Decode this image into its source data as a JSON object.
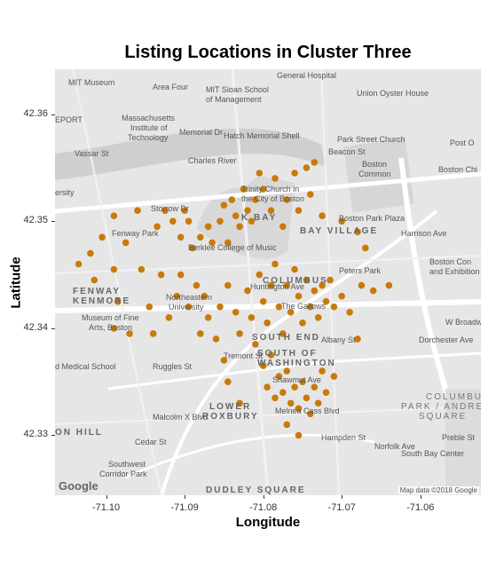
{
  "chart_data": {
    "type": "scatter",
    "title": "Listing Locations in Cluster Three",
    "xlabel": "Longitude",
    "ylabel": "Latitude",
    "xlim": [
      -71.1065,
      -71.0523
    ],
    "ylim": [
      42.3244,
      42.3642
    ],
    "x_ticks": [
      -71.1,
      -71.09,
      -71.08,
      -71.07,
      -71.06
    ],
    "x_tick_labels": [
      "-71.10",
      "-71.09",
      "-71.08",
      "-71.07",
      "-71.06"
    ],
    "y_ticks": [
      42.33,
      42.34,
      42.35,
      42.36
    ],
    "y_tick_labels": [
      "42.33",
      "42.34",
      "42.35",
      "42.36"
    ],
    "point_color": "#c87a0a",
    "basemap": "grayscale street map",
    "points": [
      [
        -71.1035,
        42.346
      ],
      [
        -71.102,
        42.347
      ],
      [
        -71.1005,
        42.3485
      ],
      [
        -71.099,
        42.3505
      ],
      [
        -71.1015,
        42.3445
      ],
      [
        -71.099,
        42.3455
      ],
      [
        -71.0975,
        42.348
      ],
      [
        -71.096,
        42.351
      ],
      [
        -71.0955,
        42.3455
      ],
      [
        -71.0945,
        42.342
      ],
      [
        -71.0985,
        42.3425
      ],
      [
        -71.099,
        42.34
      ],
      [
        -71.097,
        42.3395
      ],
      [
        -71.0935,
        42.3495
      ],
      [
        -71.093,
        42.345
      ],
      [
        -71.0925,
        42.351
      ],
      [
        -71.0915,
        42.35
      ],
      [
        -71.0905,
        42.3485
      ],
      [
        -71.09,
        42.351
      ],
      [
        -71.0895,
        42.35
      ],
      [
        -71.089,
        42.3475
      ],
      [
        -71.088,
        42.3485
      ],
      [
        -71.087,
        42.3495
      ],
      [
        -71.0865,
        42.348
      ],
      [
        -71.0855,
        42.35
      ],
      [
        -71.085,
        42.3515
      ],
      [
        -71.0845,
        42.348
      ],
      [
        -71.084,
        42.352
      ],
      [
        -71.0835,
        42.3505
      ],
      [
        -71.083,
        42.3495
      ],
      [
        -71.0825,
        42.353
      ],
      [
        -71.082,
        42.351
      ],
      [
        -71.0815,
        42.35
      ],
      [
        -71.081,
        42.352
      ],
      [
        -71.0805,
        42.3545
      ],
      [
        -71.08,
        42.353
      ],
      [
        -71.079,
        42.351
      ],
      [
        -71.0785,
        42.354
      ],
      [
        -71.0775,
        42.3495
      ],
      [
        -71.077,
        42.352
      ],
      [
        -71.076,
        42.3545
      ],
      [
        -71.0755,
        42.351
      ],
      [
        -71.0745,
        42.355
      ],
      [
        -71.074,
        42.3525
      ],
      [
        -71.0735,
        42.3555
      ],
      [
        -71.0725,
        42.3505
      ],
      [
        -71.07,
        42.35
      ],
      [
        -71.068,
        42.349
      ],
      [
        -71.067,
        42.3475
      ],
      [
        -71.0905,
        42.345
      ],
      [
        -71.091,
        42.343
      ],
      [
        -71.0895,
        42.342
      ],
      [
        -71.0885,
        42.344
      ],
      [
        -71.0875,
        42.343
      ],
      [
        -71.087,
        42.341
      ],
      [
        -71.088,
        42.3395
      ],
      [
        -71.086,
        42.339
      ],
      [
        -71.0855,
        42.342
      ],
      [
        -71.0845,
        42.344
      ],
      [
        -71.0835,
        42.3415
      ],
      [
        -71.083,
        42.3395
      ],
      [
        -71.082,
        42.3435
      ],
      [
        -71.0815,
        42.341
      ],
      [
        -71.081,
        42.3385
      ],
      [
        -71.0805,
        42.345
      ],
      [
        -71.08,
        42.3425
      ],
      [
        -71.0795,
        42.3405
      ],
      [
        -71.079,
        42.344
      ],
      [
        -71.0785,
        42.346
      ],
      [
        -71.078,
        42.342
      ],
      [
        -71.0775,
        42.3395
      ],
      [
        -71.077,
        42.344
      ],
      [
        -71.0765,
        42.3415
      ],
      [
        -71.076,
        42.3455
      ],
      [
        -71.0755,
        42.343
      ],
      [
        -71.075,
        42.3405
      ],
      [
        -71.0745,
        42.3445
      ],
      [
        -71.074,
        42.342
      ],
      [
        -71.0735,
        42.3435
      ],
      [
        -71.073,
        42.341
      ],
      [
        -71.0725,
        42.344
      ],
      [
        -71.072,
        42.3425
      ],
      [
        -71.0715,
        42.3445
      ],
      [
        -71.071,
        42.342
      ],
      [
        -71.07,
        42.343
      ],
      [
        -71.069,
        42.3415
      ],
      [
        -71.0675,
        42.344
      ],
      [
        -71.066,
        42.3435
      ],
      [
        -71.064,
        42.344
      ],
      [
        -71.08,
        42.3365
      ],
      [
        -71.0795,
        42.3345
      ],
      [
        -71.079,
        42.3375
      ],
      [
        -71.0785,
        42.3335
      ],
      [
        -71.078,
        42.3355
      ],
      [
        -71.0775,
        42.334
      ],
      [
        -71.077,
        42.336
      ],
      [
        -71.0765,
        42.333
      ],
      [
        -71.076,
        42.3345
      ],
      [
        -71.0755,
        42.3325
      ],
      [
        -71.075,
        42.335
      ],
      [
        -71.0745,
        42.3335
      ],
      [
        -71.074,
        42.332
      ],
      [
        -71.0735,
        42.3345
      ],
      [
        -71.073,
        42.333
      ],
      [
        -71.0725,
        42.336
      ],
      [
        -71.072,
        42.334
      ],
      [
        -71.071,
        42.3355
      ],
      [
        -71.077,
        42.331
      ],
      [
        -71.0755,
        42.33
      ],
      [
        -71.0845,
        42.335
      ],
      [
        -71.083,
        42.333
      ],
      [
        -71.085,
        42.337
      ],
      [
        -71.068,
        42.339
      ],
      [
        -71.092,
        42.341
      ],
      [
        -71.094,
        42.3395
      ]
    ]
  },
  "map": {
    "attribution": "Map data ©2018 Google",
    "logo": "Google",
    "labels": [
      {
        "text": "MIT Museum"
      },
      {
        "text": "Area Four"
      },
      {
        "text": "MIT Sloan School"
      },
      {
        "text": "of Management"
      },
      {
        "text": "General Hospital"
      },
      {
        "text": "Union Oyster House"
      },
      {
        "text": "EPORT"
      },
      {
        "text": "Massachusetts"
      },
      {
        "text": "Institute of"
      },
      {
        "text": "Technology"
      },
      {
        "text": "Memorial Dr"
      },
      {
        "text": "Hatch Memorial Shell"
      },
      {
        "text": "Park Street Church"
      },
      {
        "text": "Post O"
      },
      {
        "text": "Vassar St"
      },
      {
        "text": "Charles River"
      },
      {
        "text": "Boston"
      },
      {
        "text": "Common"
      },
      {
        "text": "Boston Chi"
      },
      {
        "text": "ersity"
      },
      {
        "text": "Trinity Church in"
      },
      {
        "text": "the City of Boston"
      },
      {
        "text": "Fenway Park"
      },
      {
        "text": "K BAY"
      },
      {
        "text": "Boston Park Plaza"
      },
      {
        "text": "Berklee College of Music"
      },
      {
        "text": "BAY VILLAGE"
      },
      {
        "text": "Boston Con"
      },
      {
        "text": "and Exhibition"
      },
      {
        "text": "Peters Park"
      },
      {
        "text": "COLUMBUS"
      },
      {
        "text": "FENWAY"
      },
      {
        "text": "KENMORE"
      },
      {
        "text": "Northeastern"
      },
      {
        "text": "University"
      },
      {
        "text": "The Gallows"
      },
      {
        "text": "Museum of Fine"
      },
      {
        "text": "Arts, Boston"
      },
      {
        "text": "SOUTH END"
      },
      {
        "text": "SOUTH OF"
      },
      {
        "text": "WASHINGTON"
      },
      {
        "text": "d Medical School"
      },
      {
        "text": "Tremont St"
      },
      {
        "text": "Ruggles St"
      },
      {
        "text": "COLUMBUS"
      },
      {
        "text": "PARK / ANDREW"
      },
      {
        "text": "SQUARE"
      },
      {
        "text": "LOWER"
      },
      {
        "text": "ROXBURY"
      },
      {
        "text": "Melnea Cass Blvd"
      },
      {
        "text": "Malcolm X Blvd"
      },
      {
        "text": "ON HILL"
      },
      {
        "text": "Southwest"
      },
      {
        "text": "Corridor Park"
      },
      {
        "text": "South Bay Center"
      },
      {
        "text": "DUDLEY SQUARE"
      },
      {
        "text": "Preble St"
      },
      {
        "text": "Beacon St"
      },
      {
        "text": "Storrow Dr"
      },
      {
        "text": "Harrison Ave"
      },
      {
        "text": "Albany St"
      },
      {
        "text": "Norfolk Ave"
      },
      {
        "text": "Hampden St"
      },
      {
        "text": "W Broadway"
      },
      {
        "text": "Dorchester Ave"
      },
      {
        "text": "Shawmut Ave"
      },
      {
        "text": "Huntington Ave"
      },
      {
        "text": "Cedar St"
      }
    ]
  }
}
